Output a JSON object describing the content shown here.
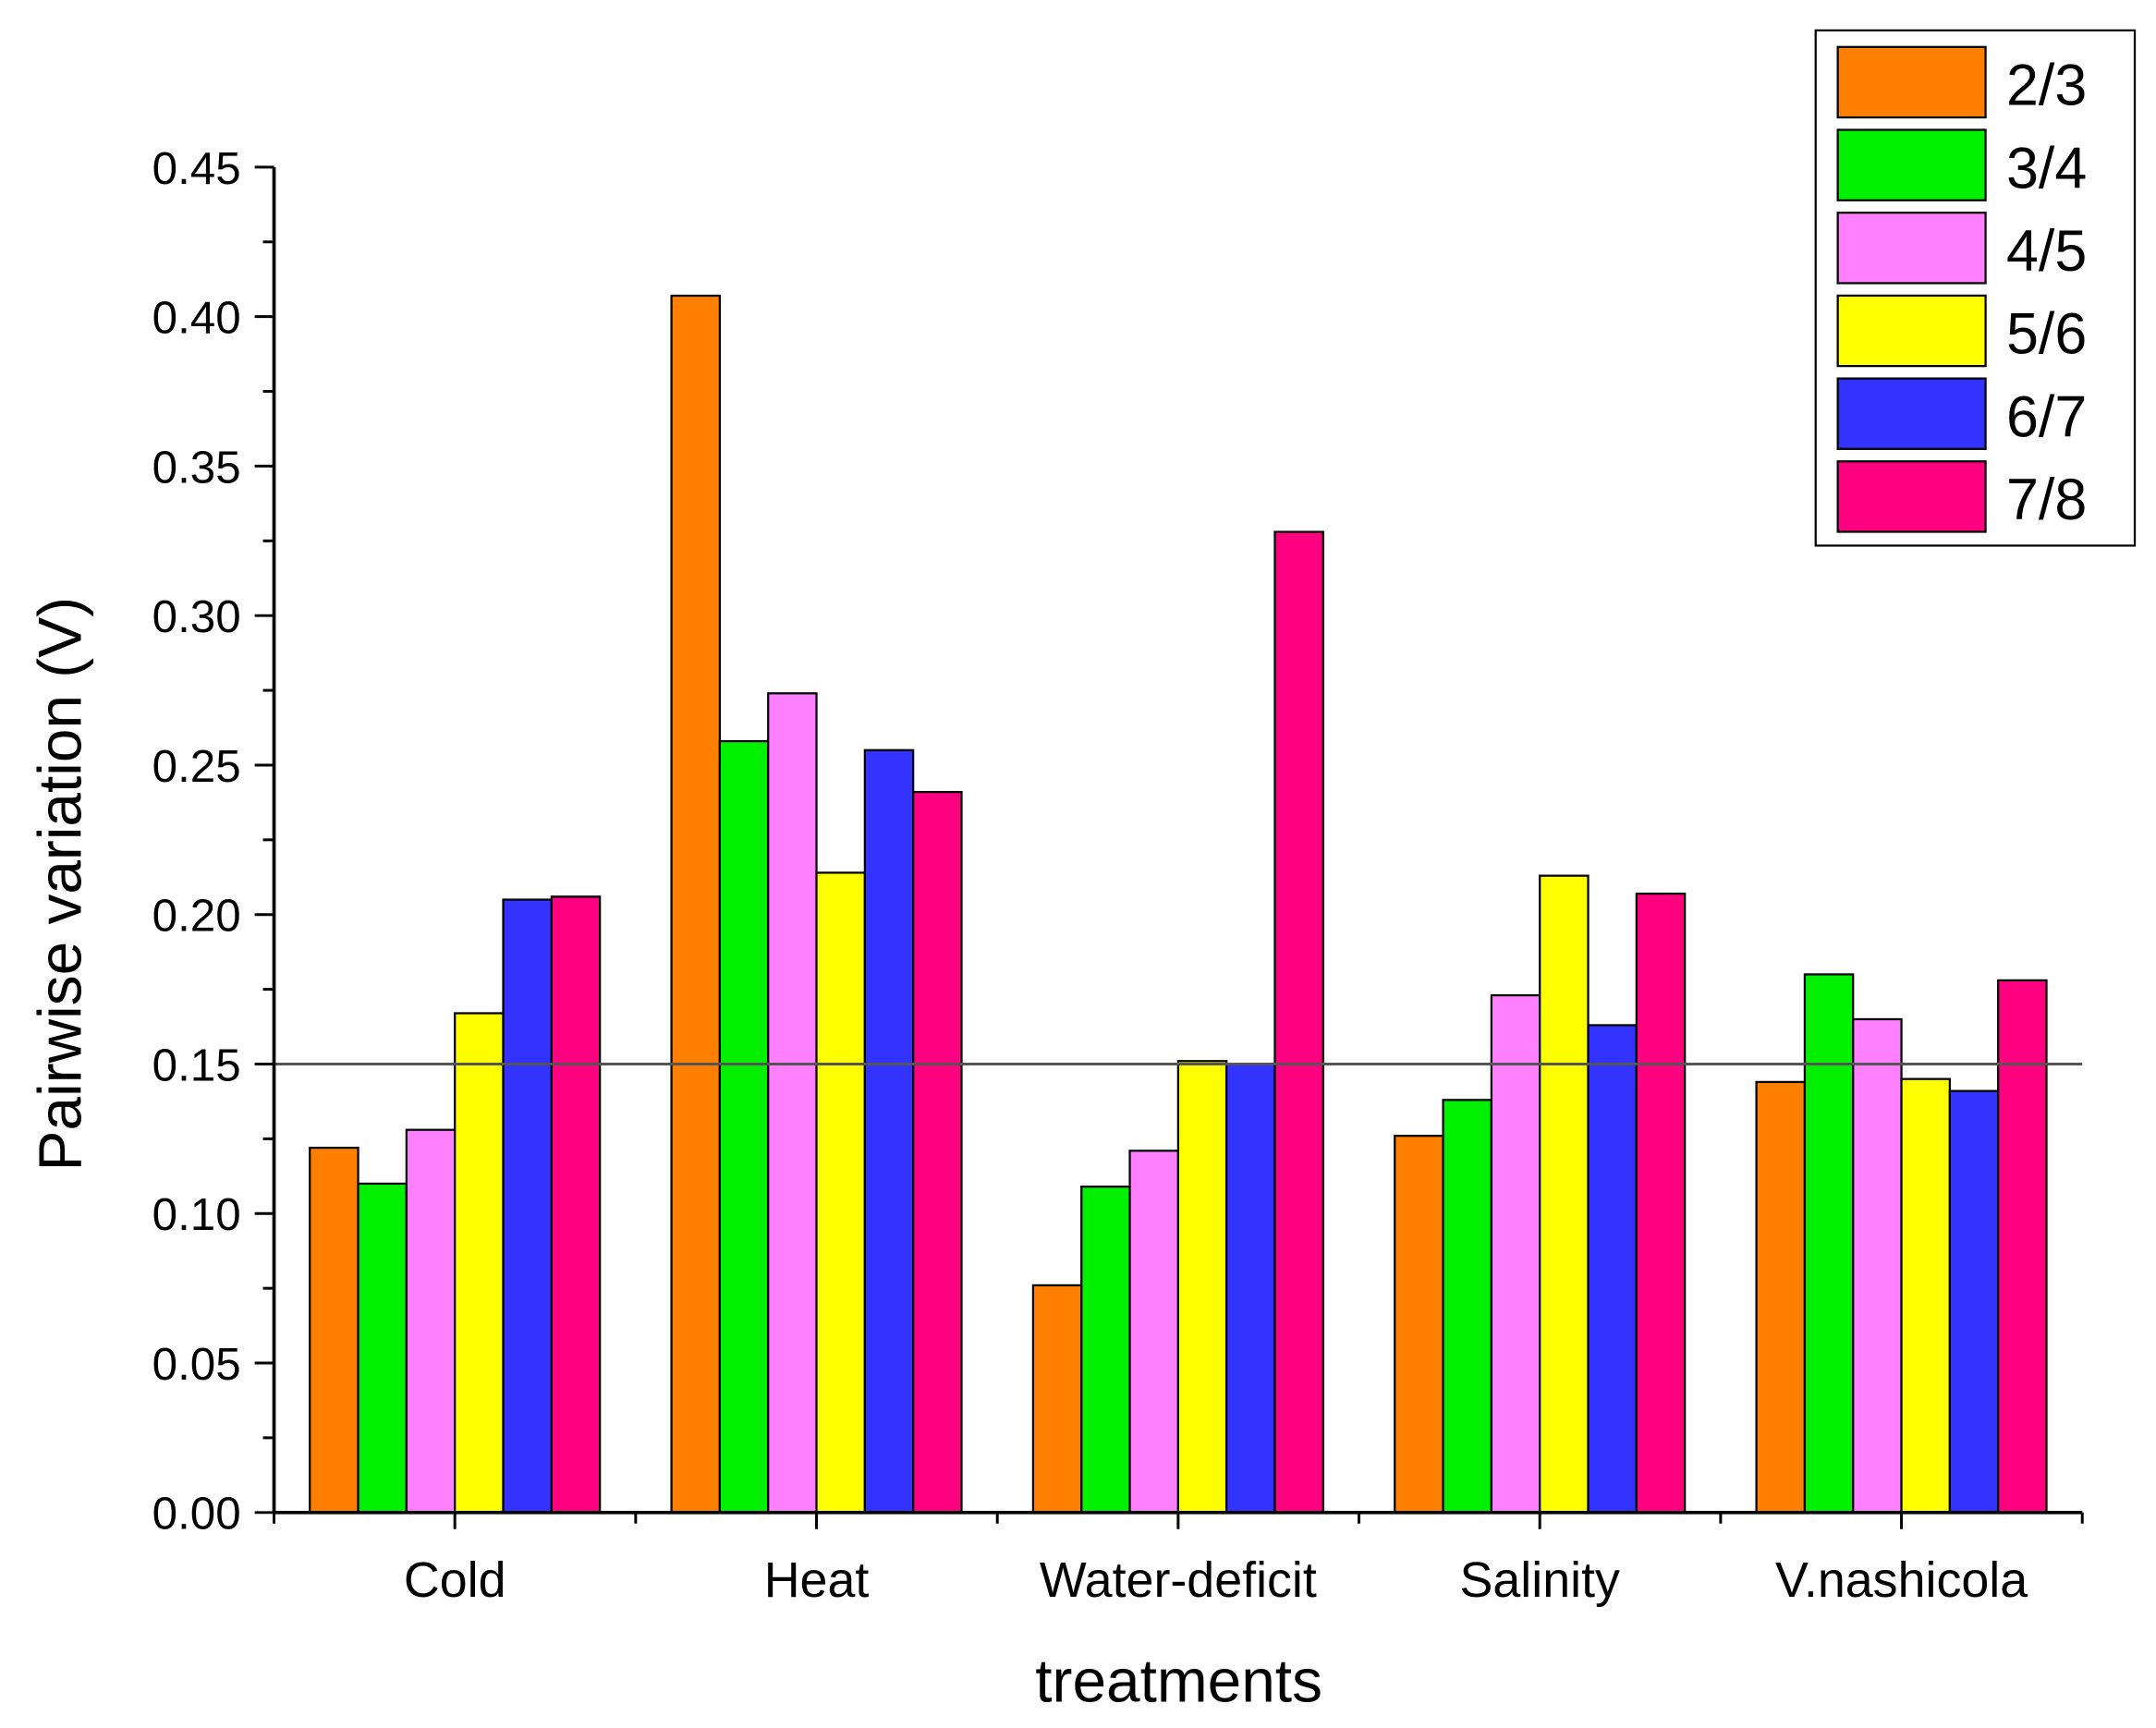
{
  "chart_data": {
    "type": "bar",
    "title": "",
    "xlabel": "treatments",
    "ylabel": "Pairwise variation (V)",
    "ylim": [
      0,
      0.45
    ],
    "yticks": [
      "0.00",
      "0.05",
      "0.10",
      "0.15",
      "0.20",
      "0.25",
      "0.30",
      "0.35",
      "0.40",
      "0.45"
    ],
    "categories": [
      "Cold",
      "Heat",
      "Water-deficit",
      "Salinity",
      "V.nashicola"
    ],
    "series": [
      {
        "name": "2/3",
        "color": "#FF7F00",
        "values": [
          0.122,
          0.407,
          0.076,
          0.126,
          0.144
        ]
      },
      {
        "name": "3/4",
        "color": "#00F000",
        "values": [
          0.11,
          0.258,
          0.109,
          0.138,
          0.18
        ]
      },
      {
        "name": "4/5",
        "color": "#FF80FF",
        "values": [
          0.128,
          0.274,
          0.121,
          0.173,
          0.165
        ]
      },
      {
        "name": "5/6",
        "color": "#FFFF00",
        "values": [
          0.167,
          0.214,
          0.151,
          0.213,
          0.145
        ]
      },
      {
        "name": "6/7",
        "color": "#3333FF",
        "values": [
          0.205,
          0.255,
          0.15,
          0.163,
          0.141
        ]
      },
      {
        "name": "7/8",
        "color": "#FF0080",
        "values": [
          0.206,
          0.241,
          0.328,
          0.207,
          0.178
        ]
      }
    ],
    "reference_line": 0.15,
    "legend_position": "top-right",
    "grid": false
  }
}
